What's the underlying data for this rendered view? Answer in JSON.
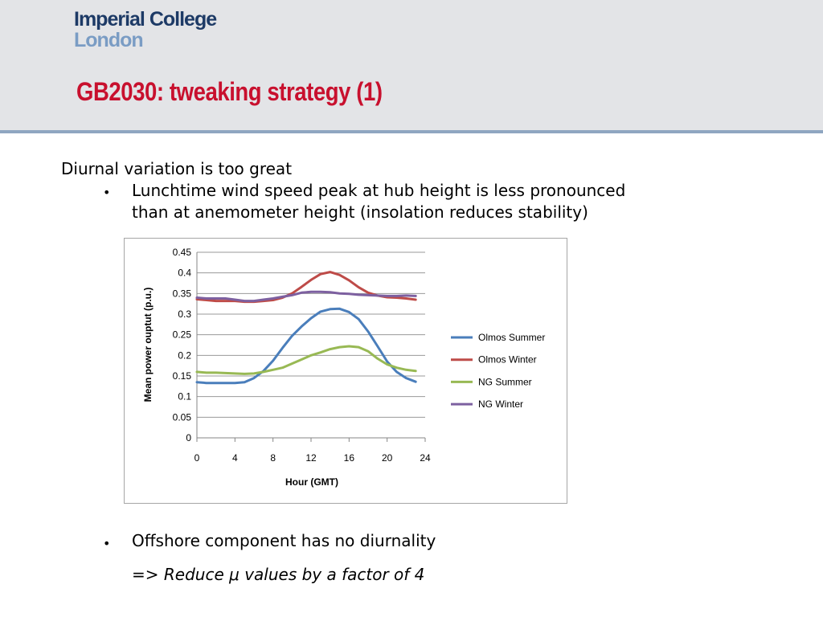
{
  "header": {
    "logo_line1": "Imperial College",
    "logo_line2": "London",
    "title": "GB2030: tweaking strategy (1)"
  },
  "body": {
    "heading": "Diurnal variation is too great",
    "bullet1_line1": "Lunchtime wind speed peak at hub height is less pronounced",
    "bullet1_line2": "than at anemometer height (insolation reduces stability)",
    "bullet2": "Offshore component has no diurnality",
    "conclusion_prefix": "=> ",
    "conclusion_italic": "Reduce μ values by a factor of 4",
    "bullet_glyph": "•"
  },
  "chart_data": {
    "type": "line",
    "xlabel": "Hour (GMT)",
    "ylabel": "Mean power ouptut (p.u.)",
    "xlim": [
      0,
      24
    ],
    "ylim": [
      0,
      0.45
    ],
    "xticks": [
      "0",
      "4",
      "8",
      "12",
      "16",
      "20",
      "24"
    ],
    "yticks": [
      "0",
      "0.05",
      "0.1",
      "0.15",
      "0.2",
      "0.25",
      "0.3",
      "0.35",
      "0.4",
      "0.45"
    ],
    "grid": "horizontal",
    "legend_position": "right",
    "x": [
      0,
      1,
      2,
      3,
      4,
      5,
      6,
      7,
      8,
      9,
      10,
      11,
      12,
      13,
      14,
      15,
      16,
      17,
      18,
      19,
      20,
      21,
      22,
      23
    ],
    "series": [
      {
        "name": "Olmos Summer",
        "color": "#4a7ebb",
        "values": [
          0.135,
          0.133,
          0.133,
          0.133,
          0.133,
          0.135,
          0.145,
          0.162,
          0.187,
          0.218,
          0.247,
          0.27,
          0.29,
          0.306,
          0.312,
          0.313,
          0.305,
          0.288,
          0.258,
          0.222,
          0.185,
          0.16,
          0.145,
          0.136
        ]
      },
      {
        "name": "Olmos Winter",
        "color": "#be4b48",
        "values": [
          0.336,
          0.334,
          0.332,
          0.332,
          0.332,
          0.33,
          0.33,
          0.332,
          0.334,
          0.34,
          0.35,
          0.366,
          0.383,
          0.397,
          0.402,
          0.395,
          0.382,
          0.365,
          0.352,
          0.345,
          0.341,
          0.34,
          0.338,
          0.335
        ]
      },
      {
        "name": "NG Summer",
        "color": "#98b954",
        "values": [
          0.16,
          0.158,
          0.158,
          0.157,
          0.156,
          0.155,
          0.156,
          0.16,
          0.165,
          0.17,
          0.18,
          0.19,
          0.2,
          0.207,
          0.215,
          0.22,
          0.222,
          0.22,
          0.21,
          0.192,
          0.178,
          0.17,
          0.165,
          0.162
        ]
      },
      {
        "name": "NG Winter",
        "color": "#7d60a0",
        "values": [
          0.34,
          0.338,
          0.338,
          0.338,
          0.335,
          0.332,
          0.332,
          0.335,
          0.338,
          0.342,
          0.346,
          0.352,
          0.354,
          0.354,
          0.353,
          0.35,
          0.349,
          0.347,
          0.346,
          0.345,
          0.344,
          0.344,
          0.345,
          0.344
        ]
      }
    ]
  }
}
